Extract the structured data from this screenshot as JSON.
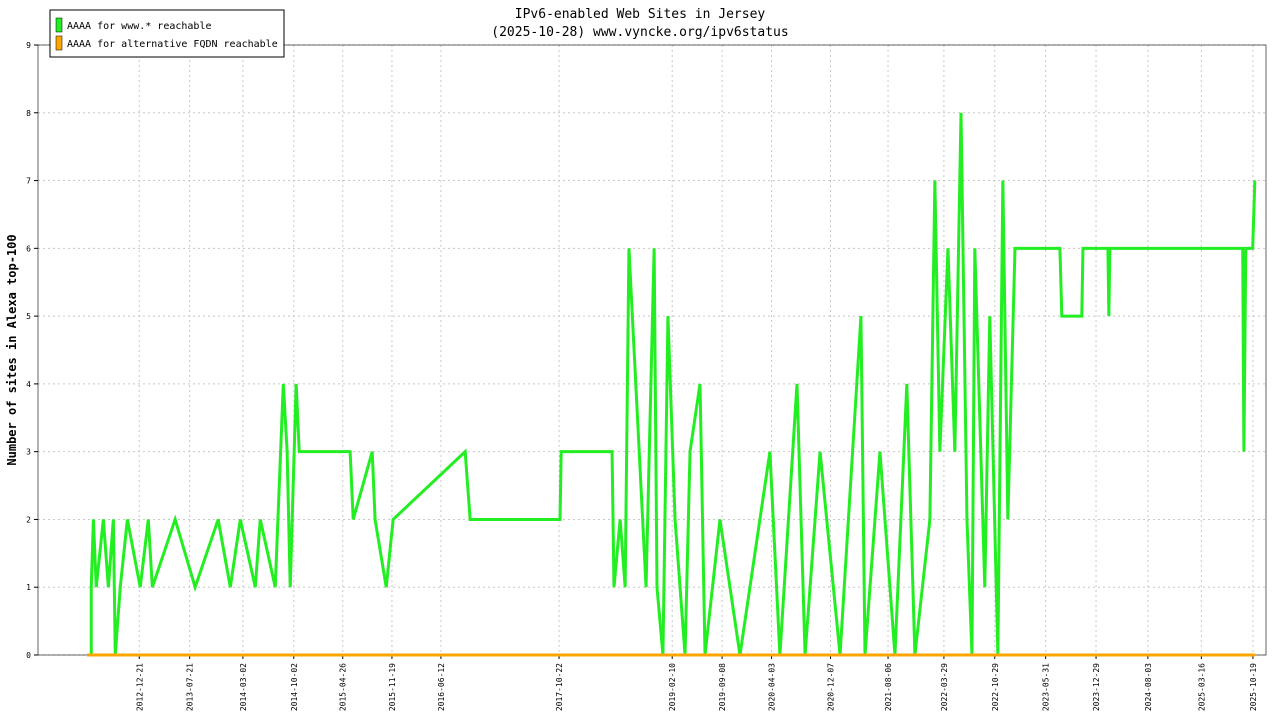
{
  "chart_data": {
    "type": "line",
    "title": "IPv6-enabled Web Sites in Jersey",
    "subtitle": "(2025-10-28) www.vyncke.org/ipv6status",
    "y_label": "Number of sites in Alexa top-100",
    "legend": "top-left",
    "grid": true,
    "xlim": [
      "2011-10-22",
      "2025-12-13"
    ],
    "xticks": [
      "2012-12-21",
      "2013-07-21",
      "2014-03-02",
      "2014-10-02",
      "2015-04-26",
      "2015-11-19",
      "2016-06-12",
      "2017-10-22",
      "2019-02-10",
      "2019-09-08",
      "2020-04-03",
      "2020-12-07",
      "2021-08-06",
      "2022-03-29",
      "2022-10-29",
      "2023-05-31",
      "2023-12-29",
      "2024-08-03",
      "2025-03-16",
      "2025-10-19"
    ],
    "ylim": [
      0,
      9
    ],
    "yticks": [
      0,
      1,
      2,
      3,
      4,
      5,
      6,
      7,
      8,
      9
    ],
    "series": [
      {
        "name": "AAAA for www.* reachable",
        "color": "#22ee22",
        "x": [
          "2012-05-16",
          "2012-06-02",
          "2012-06-02",
          "2012-06-11",
          "2012-06-23",
          "2012-07-23",
          "2012-08-13",
          "2012-09-03",
          "2012-09-11",
          "2012-10-02",
          "2012-11-01",
          "2012-12-25",
          "2013-01-28",
          "2013-02-14",
          "2013-05-21",
          "2013-08-13",
          "2013-11-18",
          "2014-01-08",
          "2014-02-19",
          "2014-04-23",
          "2014-05-14",
          "2014-07-16",
          "2014-08-19",
          "2014-09-04",
          "2014-09-17",
          "2014-10-12",
          "2014-10-25",
          "2015-05-27",
          "2015-06-09",
          "2015-08-28",
          "2015-09-09",
          "2015-10-26",
          "2015-11-24",
          "2016-09-22",
          "2016-10-13",
          "2017-10-26",
          "2017-10-31",
          "2018-06-02",
          "2018-06-10",
          "2018-07-06",
          "2018-07-27",
          "2018-08-12",
          "2018-10-23",
          "2018-11-26",
          "2018-12-08",
          "2019-01-02",
          "2019-01-23",
          "2019-02-22",
          "2019-04-05",
          "2019-04-26",
          "2019-06-07",
          "2019-06-28",
          "2019-08-30",
          "2019-11-22",
          "2020-03-27",
          "2020-05-08",
          "2020-07-19",
          "2020-08-22",
          "2020-10-24",
          "2021-01-16",
          "2021-04-14",
          "2021-05-01",
          "2021-07-03",
          "2021-09-04",
          "2021-10-24",
          "2021-11-27",
          "2022-01-29",
          "2022-02-19",
          "2022-03-12",
          "2022-04-15",
          "2022-05-14",
          "2022-06-09",
          "2022-07-04",
          "2022-07-25",
          "2022-08-06",
          "2022-09-17",
          "2022-10-08",
          "2022-11-11",
          "2022-12-02",
          "2022-12-23",
          "2023-01-22",
          "2023-07-30",
          "2023-08-07",
          "2023-10-30",
          "2023-11-04",
          "2024-02-17",
          "2024-02-21",
          "2024-02-25",
          "2025-09-06",
          "2025-09-11",
          "2025-09-19",
          "2025-10-18",
          "2025-10-27"
        ],
        "values": [
          0,
          0,
          1,
          2,
          1,
          2,
          1,
          2,
          0,
          1,
          2,
          1,
          2,
          1,
          2,
          1,
          2,
          1,
          2,
          1,
          2,
          1,
          4,
          3,
          1,
          4,
          3,
          3,
          2,
          3,
          2,
          1,
          2,
          3,
          2,
          2,
          3,
          3,
          1,
          2,
          1,
          6,
          1,
          6,
          1,
          0,
          5,
          2,
          0,
          3,
          4,
          0,
          2,
          0,
          3,
          0,
          4,
          0,
          3,
          0,
          5,
          0,
          3,
          0,
          4,
          0,
          2,
          7,
          3,
          6,
          3,
          8,
          2,
          0,
          6,
          1,
          5,
          0,
          7,
          2,
          6,
          6,
          5,
          5,
          6,
          6,
          5,
          6,
          6,
          3,
          6,
          6,
          7
        ]
      },
      {
        "name": "AAAA for alternative FQDN reachable",
        "color": "#ffa500",
        "x": [
          "2012-05-16",
          "2025-10-28"
        ],
        "values": [
          0,
          0
        ]
      }
    ]
  }
}
